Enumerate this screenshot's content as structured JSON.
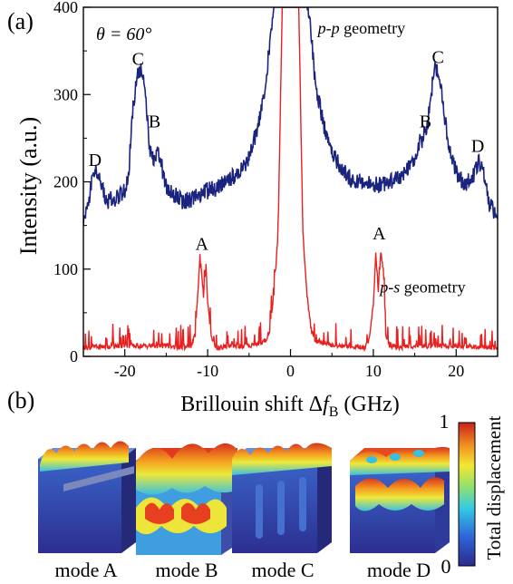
{
  "figure": {
    "panel_a_label": "(a)",
    "panel_b_label": "(b)",
    "theta_label": "θ = 60°",
    "colorbar": {
      "label": "Total displacement",
      "max_label": "1",
      "min_label": "0"
    },
    "modes": [
      {
        "label": "mode A"
      },
      {
        "label": "mode B"
      },
      {
        "label": "mode C"
      },
      {
        "label": "mode D"
      }
    ]
  },
  "chart_data": {
    "type": "line",
    "xlabel": "Brillouin shift Δf_B (GHz)",
    "ylabel": "Intensity (a.u.)",
    "xlim": [
      -25,
      25
    ],
    "ylim": [
      0,
      400
    ],
    "xticks": [
      -20,
      -10,
      0,
      10,
      20
    ],
    "yticks": [
      0,
      100,
      200,
      300,
      400
    ],
    "grid": false,
    "series": [
      {
        "name": "p-p geometry",
        "color": "#1a237e",
        "x": [
          -25,
          -24.5,
          -24,
          -23.5,
          -23,
          -22.5,
          -22,
          -21,
          -20,
          -19.5,
          -19,
          -18.5,
          -18,
          -17.5,
          -17,
          -16.5,
          -16,
          -15.5,
          -15,
          -14,
          -13,
          -12,
          -11,
          -10,
          -9,
          -8,
          -7,
          -6,
          -5,
          -4,
          -3,
          -2.5,
          -2,
          -1.8,
          -1.5,
          1.5,
          1.8,
          2,
          2.5,
          3,
          4,
          5,
          6,
          7,
          8,
          9,
          10,
          11,
          12,
          13,
          14,
          15,
          15.5,
          16,
          16.5,
          17,
          17.5,
          18,
          18.5,
          19,
          20,
          21,
          22,
          22.5,
          23,
          23.5,
          24,
          25
        ],
        "y": [
          155,
          170,
          200,
          212,
          205,
          185,
          178,
          182,
          190,
          215,
          285,
          320,
          328,
          300,
          240,
          222,
          232,
          215,
          195,
          185,
          178,
          180,
          185,
          190,
          193,
          198,
          205,
          212,
          228,
          260,
          310,
          360,
          400,
          400,
          400,
          400,
          400,
          400,
          370,
          310,
          265,
          235,
          218,
          205,
          200,
          198,
          195,
          198,
          200,
          205,
          212,
          228,
          245,
          250,
          262,
          305,
          330,
          320,
          285,
          245,
          210,
          198,
          205,
          220,
          222,
          200,
          175,
          158
        ]
      },
      {
        "name": "p-s geometry",
        "color": "#e82020",
        "x": [
          -25,
          -20,
          -15,
          -13,
          -12,
          -11.5,
          -11,
          -10.8,
          -10.5,
          -10.2,
          -10,
          -9.5,
          -9,
          -7,
          -5,
          -3,
          -2.5,
          -2,
          -1.5,
          -1,
          1,
          1.5,
          2,
          2.5,
          3,
          5,
          7,
          9,
          9.5,
          10,
          10.3,
          10.6,
          10.9,
          11.2,
          11.5,
          12,
          13,
          15,
          20,
          25
        ],
        "y": [
          10,
          12,
          12,
          10,
          12,
          25,
          100,
          104,
          70,
          104,
          60,
          20,
          10,
          12,
          12,
          18,
          30,
          70,
          140,
          400,
          400,
          140,
          70,
          30,
          18,
          12,
          12,
          10,
          20,
          60,
          118,
          75,
          120,
          100,
          25,
          12,
          10,
          12,
          12,
          10
        ]
      }
    ],
    "annotations": [
      {
        "text": "D",
        "x": -23.6,
        "y": 212
      },
      {
        "text": "C",
        "x": -18.4,
        "y": 328
      },
      {
        "text": "B",
        "x": -16.4,
        "y": 256
      },
      {
        "text": "A",
        "x": -10.7,
        "y": 116
      },
      {
        "text": "A",
        "x": 10.7,
        "y": 128
      },
      {
        "text": "B",
        "x": 16.3,
        "y": 256
      },
      {
        "text": "C",
        "x": 17.8,
        "y": 330
      },
      {
        "text": "D",
        "x": 22.6,
        "y": 228
      }
    ],
    "series_labels": [
      {
        "text": "p-p geometry",
        "x": 3.3,
        "y": 370
      },
      {
        "text": "p-s geometry",
        "x": 10.8,
        "y": 73
      }
    ]
  }
}
